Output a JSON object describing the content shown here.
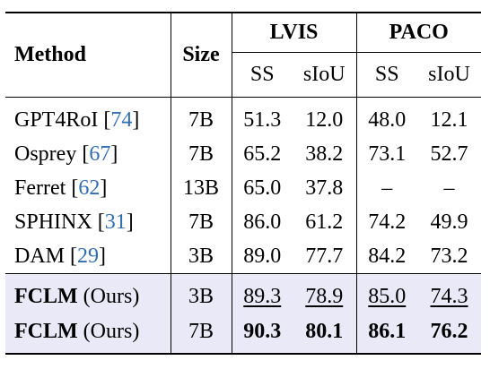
{
  "table": {
    "header": {
      "method": "Method",
      "size": "Size",
      "groups": [
        {
          "name": "LVIS",
          "columns": [
            "SS",
            "sIoU"
          ]
        },
        {
          "name": "PACO",
          "columns": [
            "SS",
            "sIoU"
          ]
        }
      ]
    },
    "rows": [
      {
        "method": "GPT4RoI",
        "citation": [
          "[",
          "74",
          "]"
        ],
        "size": "7B",
        "values": [
          "51.3",
          "12.0",
          "48.0",
          "12.1"
        ]
      },
      {
        "method": "Osprey",
        "citation": [
          "[",
          "67",
          "]"
        ],
        "size": "7B",
        "values": [
          "65.2",
          "38.2",
          "73.1",
          "52.7"
        ]
      },
      {
        "method": "Ferret",
        "citation": [
          "[",
          "62",
          "]"
        ],
        "size": "13B",
        "values": [
          "65.0",
          "37.8",
          "–",
          "–"
        ]
      },
      {
        "method": "SPHINX",
        "citation": [
          "[",
          "31",
          "]"
        ],
        "size": "7B",
        "values": [
          "86.0",
          "61.2",
          "74.2",
          "49.9"
        ]
      },
      {
        "method": "DAM",
        "citation": [
          "[",
          "29",
          "]"
        ],
        "size": "3B",
        "values": [
          "89.0",
          "77.7",
          "84.2",
          "73.2"
        ]
      }
    ],
    "ours_rows": [
      {
        "method": "FCLM",
        "suffix": "(Ours)",
        "size": "3B",
        "values": [
          "89.3",
          "78.9",
          "85.0",
          "74.3"
        ],
        "style": "underline"
      },
      {
        "method": "FCLM",
        "suffix": "(Ours)",
        "size": "7B",
        "values": [
          "90.3",
          "80.1",
          "86.1",
          "76.2"
        ],
        "style": "bold"
      }
    ]
  }
}
